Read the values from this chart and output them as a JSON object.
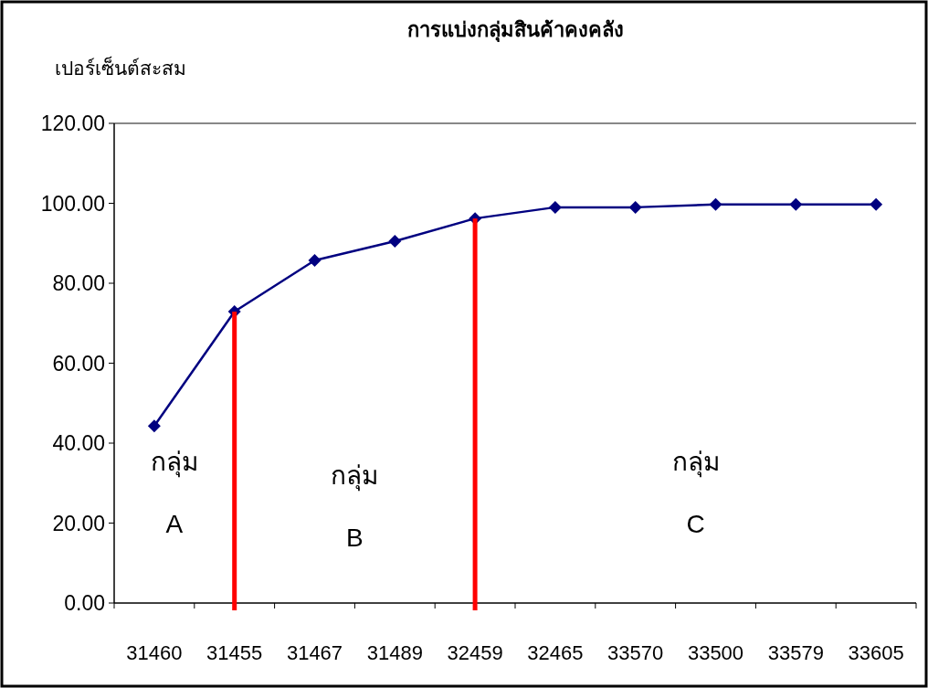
{
  "chart_data": {
    "type": "line",
    "title": "การแบ่งกลุ่มสินค้าคงคลัง",
    "ylabel": "เปอร์เซ็นต์สะสม",
    "categories": [
      "31460",
      "31455",
      "31467",
      "31489",
      "32459",
      "32465",
      "33570",
      "33500",
      "33579",
      "33605"
    ],
    "series": [
      {
        "color": "#000080",
        "values": [
          44.3,
          72.9,
          85.7,
          90.5,
          96.2,
          99.0,
          99.0,
          99.7,
          99.7,
          99.7
        ]
      },
      {
        "type": "bar",
        "color": "#ff0000",
        "values": [
          null,
          72.9,
          null,
          null,
          96.2,
          null,
          null,
          null,
          null,
          null
        ]
      }
    ],
    "marker": "diamond",
    "grid": false,
    "ylim": [
      0,
      120
    ],
    "yticks": [
      {
        "value": 0,
        "label": "0.00"
      },
      {
        "value": 20,
        "label": "20.00"
      },
      {
        "value": 40,
        "label": "40.00"
      },
      {
        "value": 60,
        "label": "60.00"
      },
      {
        "value": 80,
        "label": "80.00"
      },
      {
        "value": 100,
        "label": "100.00"
      },
      {
        "value": 120,
        "label": "120.00"
      }
    ],
    "annotations": [
      "กลุ่ม\nA",
      "กลุ่ม\nB",
      "กลุ่ม\nC"
    ]
  }
}
